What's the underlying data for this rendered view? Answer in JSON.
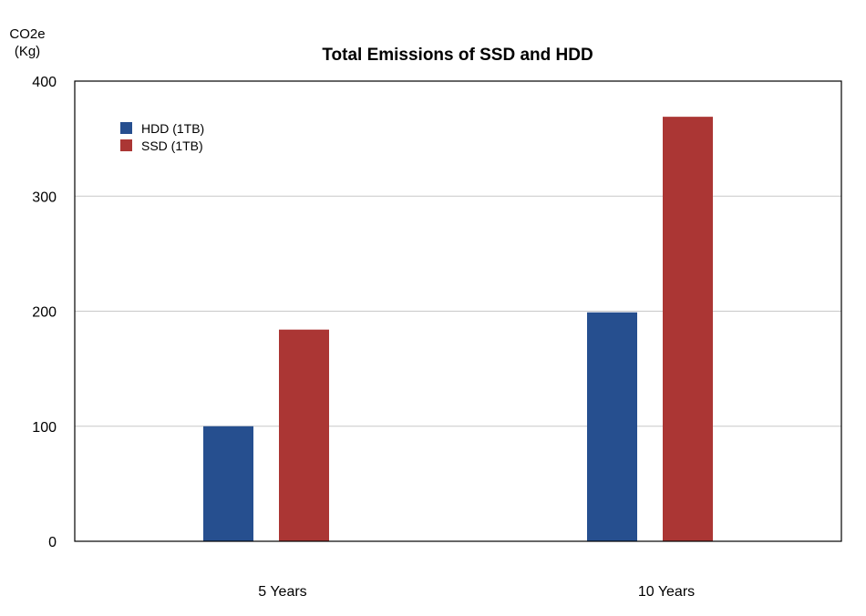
{
  "chart_data": {
    "type": "bar",
    "title": "Total Emissions of SSD and HDD",
    "ylabel_lines": [
      "CO2e",
      "(Kg)"
    ],
    "xlabel": "",
    "categories": [
      "5 Years",
      "10 Years"
    ],
    "series": [
      {
        "name": "HDD (1TB)",
        "color": "#264f8f",
        "values": [
          100,
          199
        ]
      },
      {
        "name": "SSD (1TB)",
        "color": "#ab3634",
        "values": [
          184,
          369
        ]
      }
    ],
    "ylim": [
      0,
      400
    ],
    "yticks": [
      0,
      100,
      200,
      300,
      400
    ],
    "grid": true,
    "legend_position": "top-left"
  }
}
